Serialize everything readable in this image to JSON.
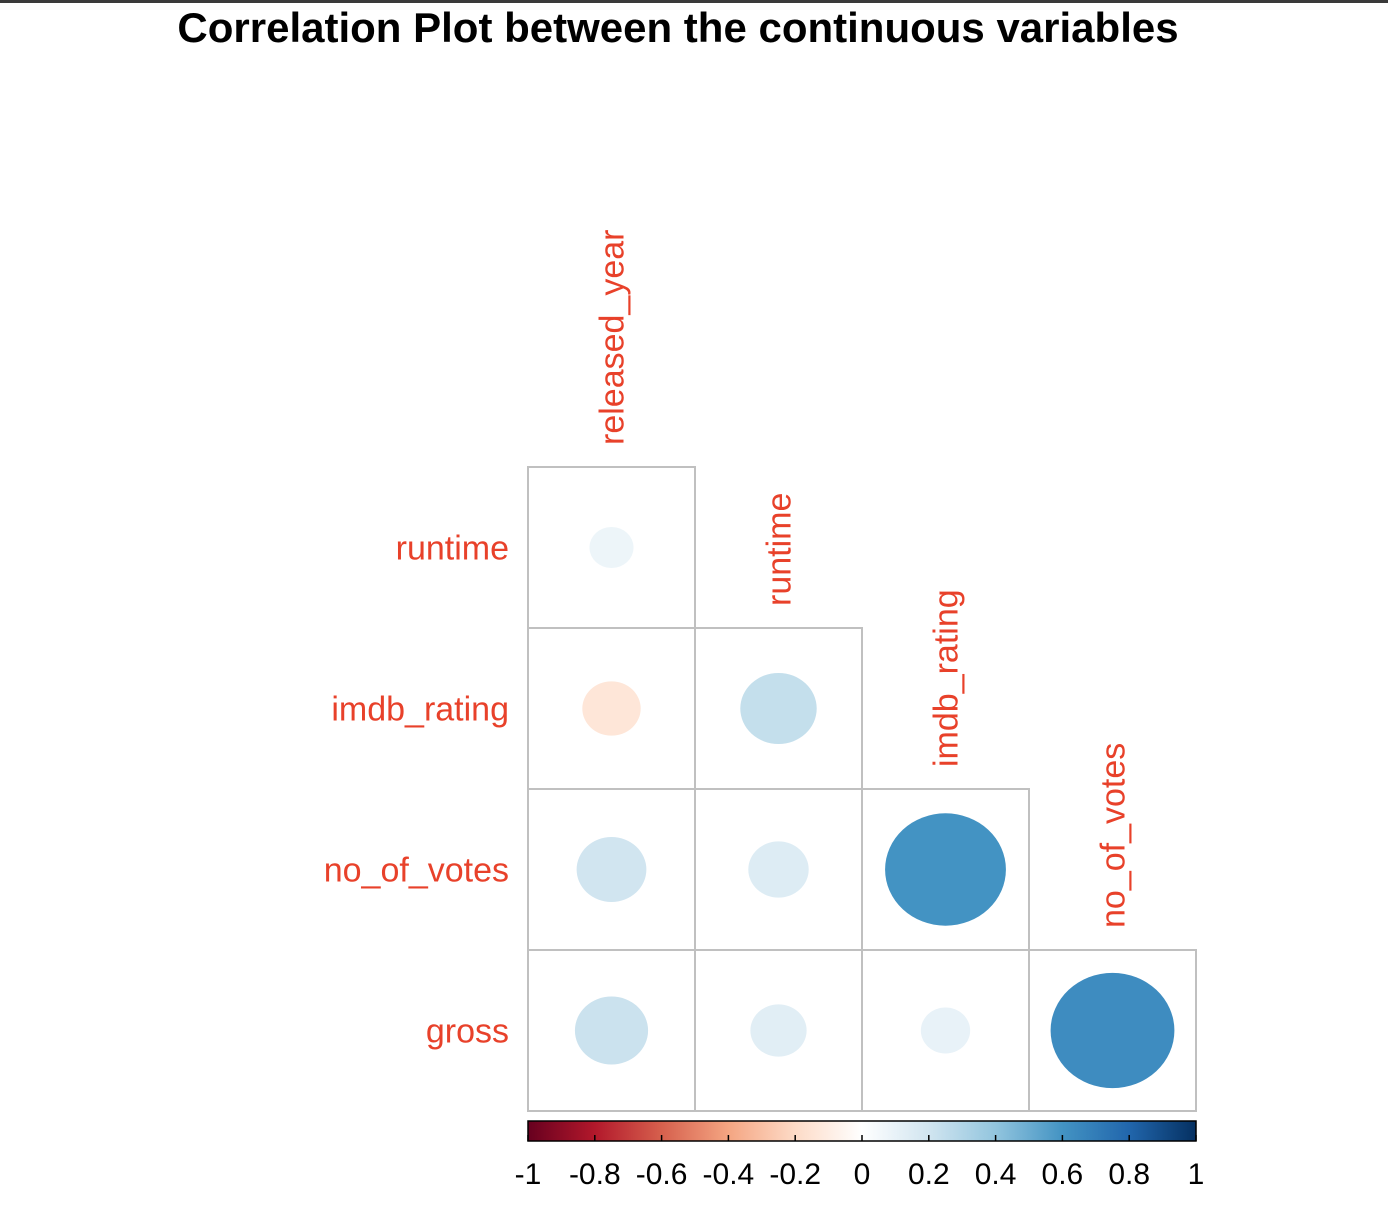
{
  "chart_data": {
    "type": "heatmap",
    "title": "Correlation Plot between the continuous variables",
    "variables": [
      "released_year",
      "runtime",
      "imdb_rating",
      "no_of_votes",
      "gross"
    ],
    "row_labels": [
      "runtime",
      "imdb_rating",
      "no_of_votes",
      "gross"
    ],
    "col_labels": [
      "released_year",
      "runtime",
      "imdb_rating",
      "no_of_votes"
    ],
    "layout": "lower-triangle",
    "method": "circle",
    "cells": [
      {
        "row": "runtime",
        "col": "released_year",
        "value": 0.08
      },
      {
        "row": "imdb_rating",
        "col": "released_year",
        "value": -0.14
      },
      {
        "row": "imdb_rating",
        "col": "runtime",
        "value": 0.24
      },
      {
        "row": "no_of_votes",
        "col": "released_year",
        "value": 0.2
      },
      {
        "row": "no_of_votes",
        "col": "runtime",
        "value": 0.15
      },
      {
        "row": "no_of_votes",
        "col": "imdb_rating",
        "value": 0.6
      },
      {
        "row": "gross",
        "col": "released_year",
        "value": 0.22
      },
      {
        "row": "gross",
        "col": "runtime",
        "value": 0.13
      },
      {
        "row": "gross",
        "col": "imdb_rating",
        "value": 0.1
      },
      {
        "row": "gross",
        "col": "no_of_votes",
        "value": 0.63
      }
    ],
    "colorbar": {
      "range": [
        -1,
        1
      ],
      "ticks": [
        -1,
        -0.8,
        -0.6,
        -0.4,
        -0.2,
        0,
        0.2,
        0.4,
        0.6,
        0.8,
        1
      ],
      "tick_labels": [
        "-1",
        "-0.8",
        "-0.6",
        "-0.4",
        "-0.2",
        "0",
        "0.2",
        "0.4",
        "0.6",
        "0.8",
        "1"
      ],
      "colors": [
        "#67001f",
        "#b2182b",
        "#d6604d",
        "#f4a582",
        "#fddbc7",
        "#ffffff",
        "#d1e5f0",
        "#92c5de",
        "#4393c3",
        "#2166ac",
        "#053061"
      ]
    },
    "label_color": "#e8412a",
    "grid_color": "#c0c0c0"
  }
}
